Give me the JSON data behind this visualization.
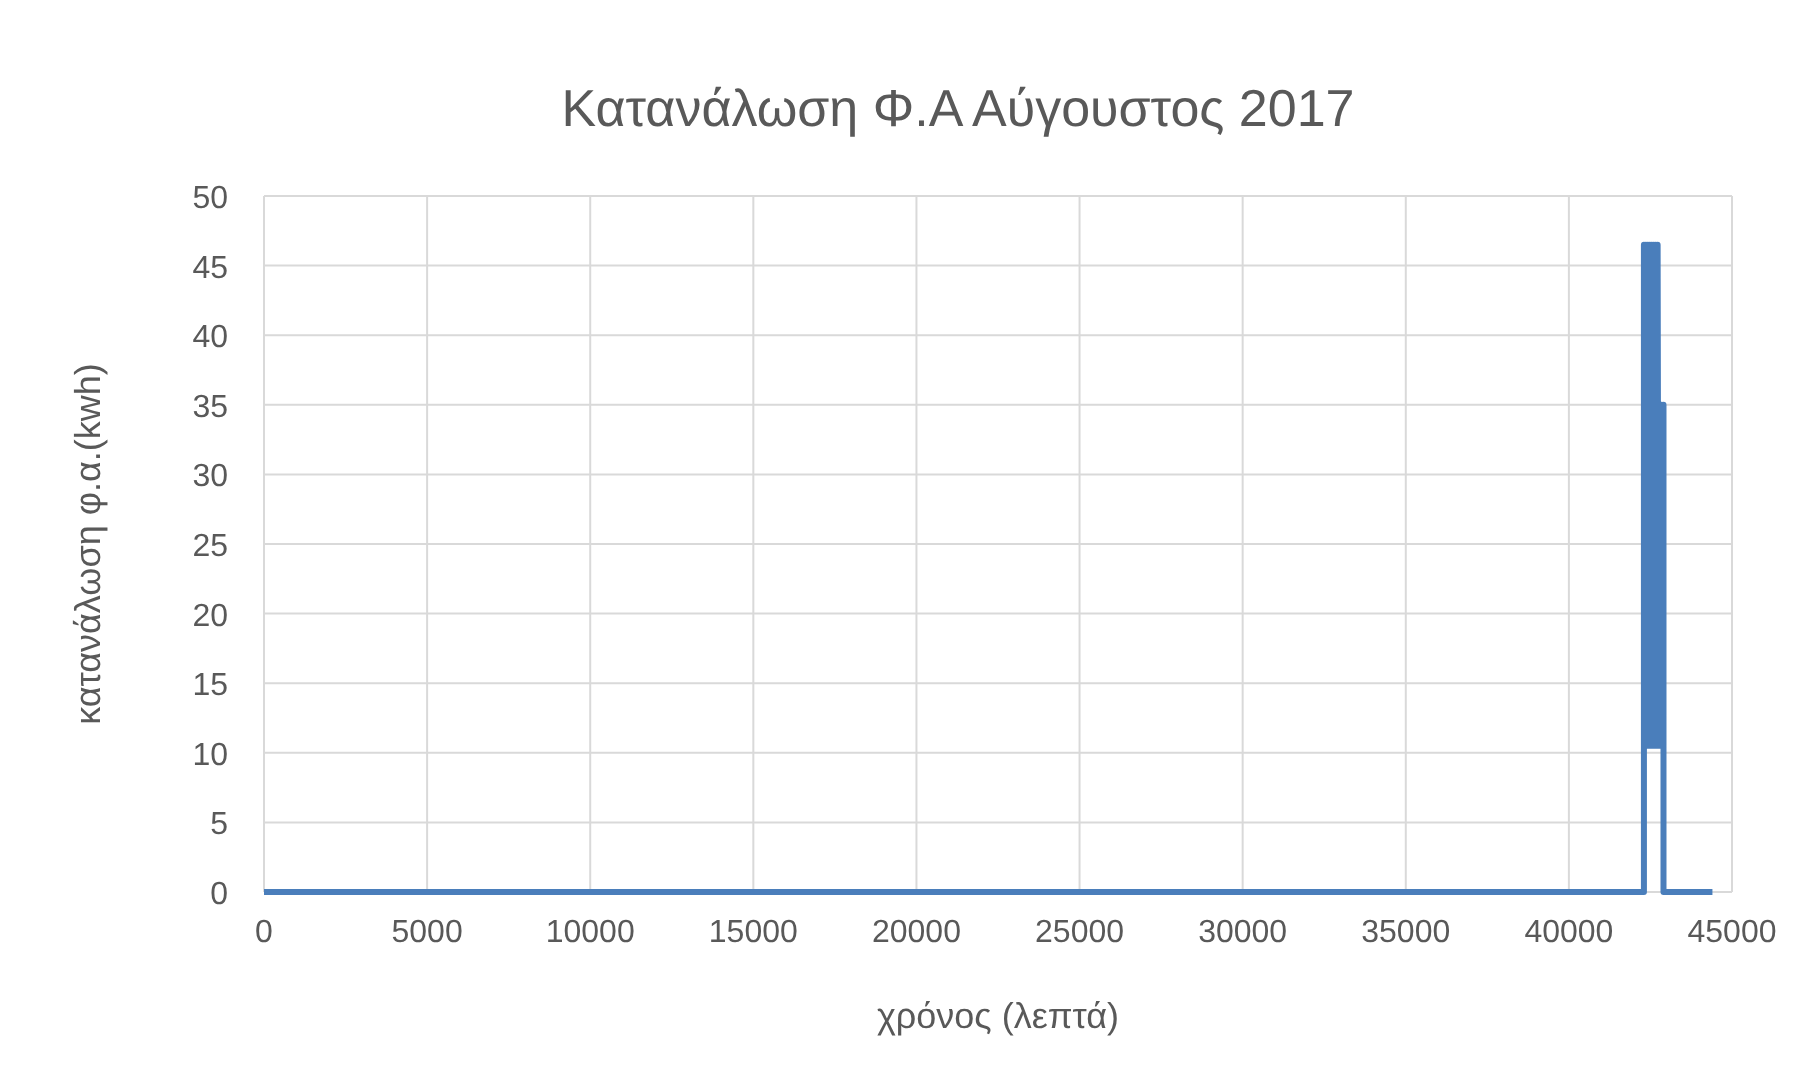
{
  "chart_data": {
    "type": "line",
    "title": "Κατανάλωση  Φ.Α Αύγουστος 2017",
    "xlabel": "χρόνος (λεπτά)",
    "ylabel": "κατανάλωση φ.α.(kwh)",
    "x": [
      0,
      42300,
      42300,
      42330,
      42360,
      42390,
      42420,
      42450,
      42480,
      42510,
      42540,
      42570,
      42600,
      42630,
      42660,
      42690,
      42720,
      42750,
      42780,
      42810,
      42840,
      42870,
      42900,
      42900,
      44400
    ],
    "series": [
      {
        "color": "#4a7ebb",
        "values": [
          0,
          0,
          46.5,
          10.5,
          46.5,
          10.5,
          46.5,
          10.5,
          46.5,
          10.5,
          46.5,
          10.5,
          46.5,
          10.5,
          46.5,
          10.5,
          46.5,
          10.5,
          35,
          10.5,
          35,
          10.5,
          35,
          0,
          0
        ]
      }
    ],
    "xlim": [
      0,
      45000
    ],
    "xticks": [
      0,
      5000,
      10000,
      15000,
      20000,
      25000,
      30000,
      35000,
      40000,
      45000
    ],
    "ylim": [
      0,
      50
    ],
    "yticks": [
      0,
      5,
      10,
      15,
      20,
      25,
      30,
      35,
      40,
      45,
      50
    ],
    "grid": true,
    "marker": "none",
    "line_style": "solid"
  }
}
